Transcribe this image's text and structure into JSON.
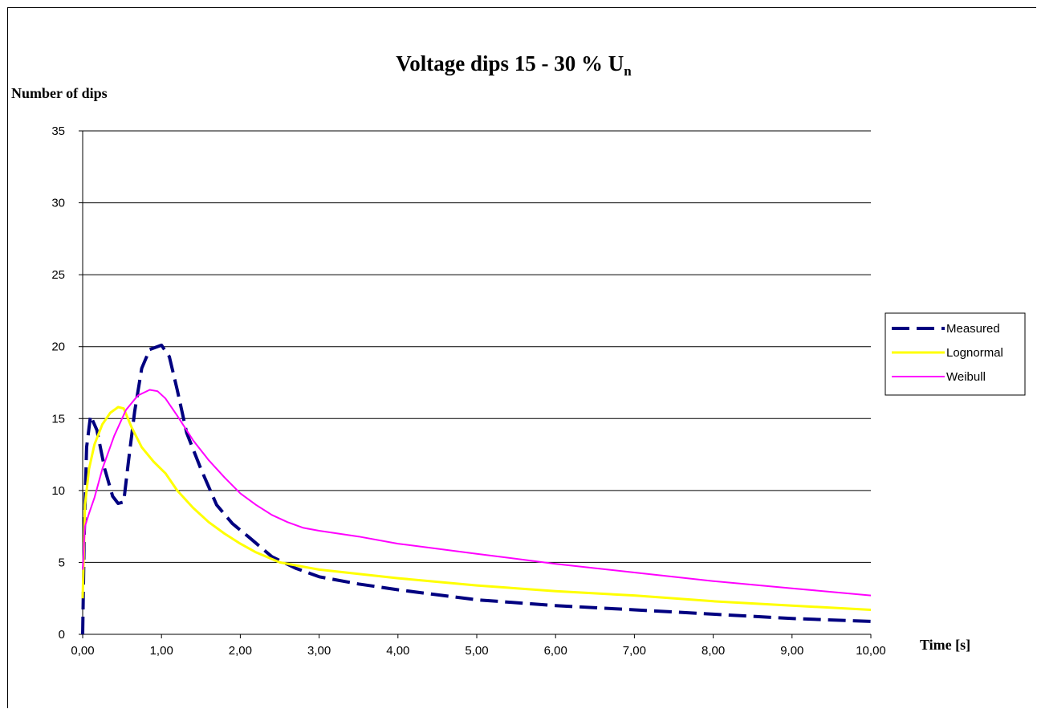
{
  "chart_data": {
    "type": "line",
    "title": "Voltage dips 15 - 30 % U",
    "title_subscript": "n",
    "xlabel": "Time [s]",
    "ylabel": "Number of dips",
    "xlim": [
      0,
      10
    ],
    "ylim": [
      0,
      35
    ],
    "x_ticks": [
      "0,00",
      "1,00",
      "2,00",
      "3,00",
      "4,00",
      "5,00",
      "6,00",
      "7,00",
      "8,00",
      "9,00",
      "10,00"
    ],
    "y_ticks": [
      "0",
      "5",
      "10",
      "15",
      "20",
      "25",
      "30",
      "35"
    ],
    "grid": "horizontal",
    "legend_position": "right",
    "series": [
      {
        "name": "Measured",
        "color": "#000080",
        "style": "dashed",
        "points": [
          [
            0,
            0
          ],
          [
            0.02,
            7
          ],
          [
            0.05,
            13
          ],
          [
            0.1,
            15.2
          ],
          [
            0.18,
            14.2
          ],
          [
            0.28,
            11.5
          ],
          [
            0.38,
            9.6
          ],
          [
            0.45,
            9.1
          ],
          [
            0.52,
            9.2
          ],
          [
            0.58,
            12
          ],
          [
            0.66,
            15.5
          ],
          [
            0.75,
            18.5
          ],
          [
            0.85,
            19.8
          ],
          [
            1.0,
            20.1
          ],
          [
            1.1,
            19.3
          ],
          [
            1.2,
            17
          ],
          [
            1.32,
            14
          ],
          [
            1.5,
            11.5
          ],
          [
            1.7,
            9
          ],
          [
            1.9,
            7.7
          ],
          [
            2.1,
            6.8
          ],
          [
            2.4,
            5.4
          ],
          [
            2.7,
            4.6
          ],
          [
            3.0,
            4.0
          ],
          [
            3.5,
            3.5
          ],
          [
            4.0,
            3.1
          ],
          [
            5.0,
            2.4
          ],
          [
            6.0,
            2.0
          ],
          [
            7.0,
            1.7
          ],
          [
            8.0,
            1.4
          ],
          [
            9.0,
            1.1
          ],
          [
            10.0,
            0.9
          ]
        ]
      },
      {
        "name": "Lognormal",
        "color": "#ffff00",
        "style": "solid",
        "points": [
          [
            0,
            2.5
          ],
          [
            0.03,
            9
          ],
          [
            0.08,
            11.5
          ],
          [
            0.15,
            13.2
          ],
          [
            0.25,
            14.6
          ],
          [
            0.35,
            15.4
          ],
          [
            0.45,
            15.8
          ],
          [
            0.52,
            15.7
          ],
          [
            0.62,
            14.4
          ],
          [
            0.75,
            13
          ],
          [
            0.9,
            12
          ],
          [
            1.05,
            11.2
          ],
          [
            1.2,
            10
          ],
          [
            1.4,
            8.8
          ],
          [
            1.6,
            7.8
          ],
          [
            1.8,
            7.0
          ],
          [
            2.0,
            6.3
          ],
          [
            2.2,
            5.7
          ],
          [
            2.5,
            5.0
          ],
          [
            3.0,
            4.5
          ],
          [
            3.5,
            4.2
          ],
          [
            4.0,
            3.9
          ],
          [
            5.0,
            3.4
          ],
          [
            6.0,
            3.0
          ],
          [
            7.0,
            2.7
          ],
          [
            8.0,
            2.3
          ],
          [
            9.0,
            2.0
          ],
          [
            10.0,
            1.7
          ]
        ]
      },
      {
        "name": "Weibull",
        "color": "#ff00ff",
        "style": "solid",
        "points": [
          [
            0,
            4.5
          ],
          [
            0.03,
            7.5
          ],
          [
            0.08,
            8.4
          ],
          [
            0.15,
            9.5
          ],
          [
            0.25,
            11.5
          ],
          [
            0.4,
            13.8
          ],
          [
            0.55,
            15.6
          ],
          [
            0.7,
            16.6
          ],
          [
            0.85,
            17.0
          ],
          [
            0.95,
            16.9
          ],
          [
            1.05,
            16.4
          ],
          [
            1.2,
            15.2
          ],
          [
            1.4,
            13.5
          ],
          [
            1.6,
            12.1
          ],
          [
            1.8,
            10.9
          ],
          [
            2.0,
            9.8
          ],
          [
            2.2,
            9.0
          ],
          [
            2.4,
            8.3
          ],
          [
            2.6,
            7.8
          ],
          [
            2.8,
            7.4
          ],
          [
            3.0,
            7.2
          ],
          [
            3.5,
            6.8
          ],
          [
            4.0,
            6.3
          ],
          [
            5.0,
            5.6
          ],
          [
            6.0,
            4.9
          ],
          [
            7.0,
            4.3
          ],
          [
            8.0,
            3.7
          ],
          [
            9.0,
            3.2
          ],
          [
            10.0,
            2.7
          ]
        ]
      }
    ]
  }
}
